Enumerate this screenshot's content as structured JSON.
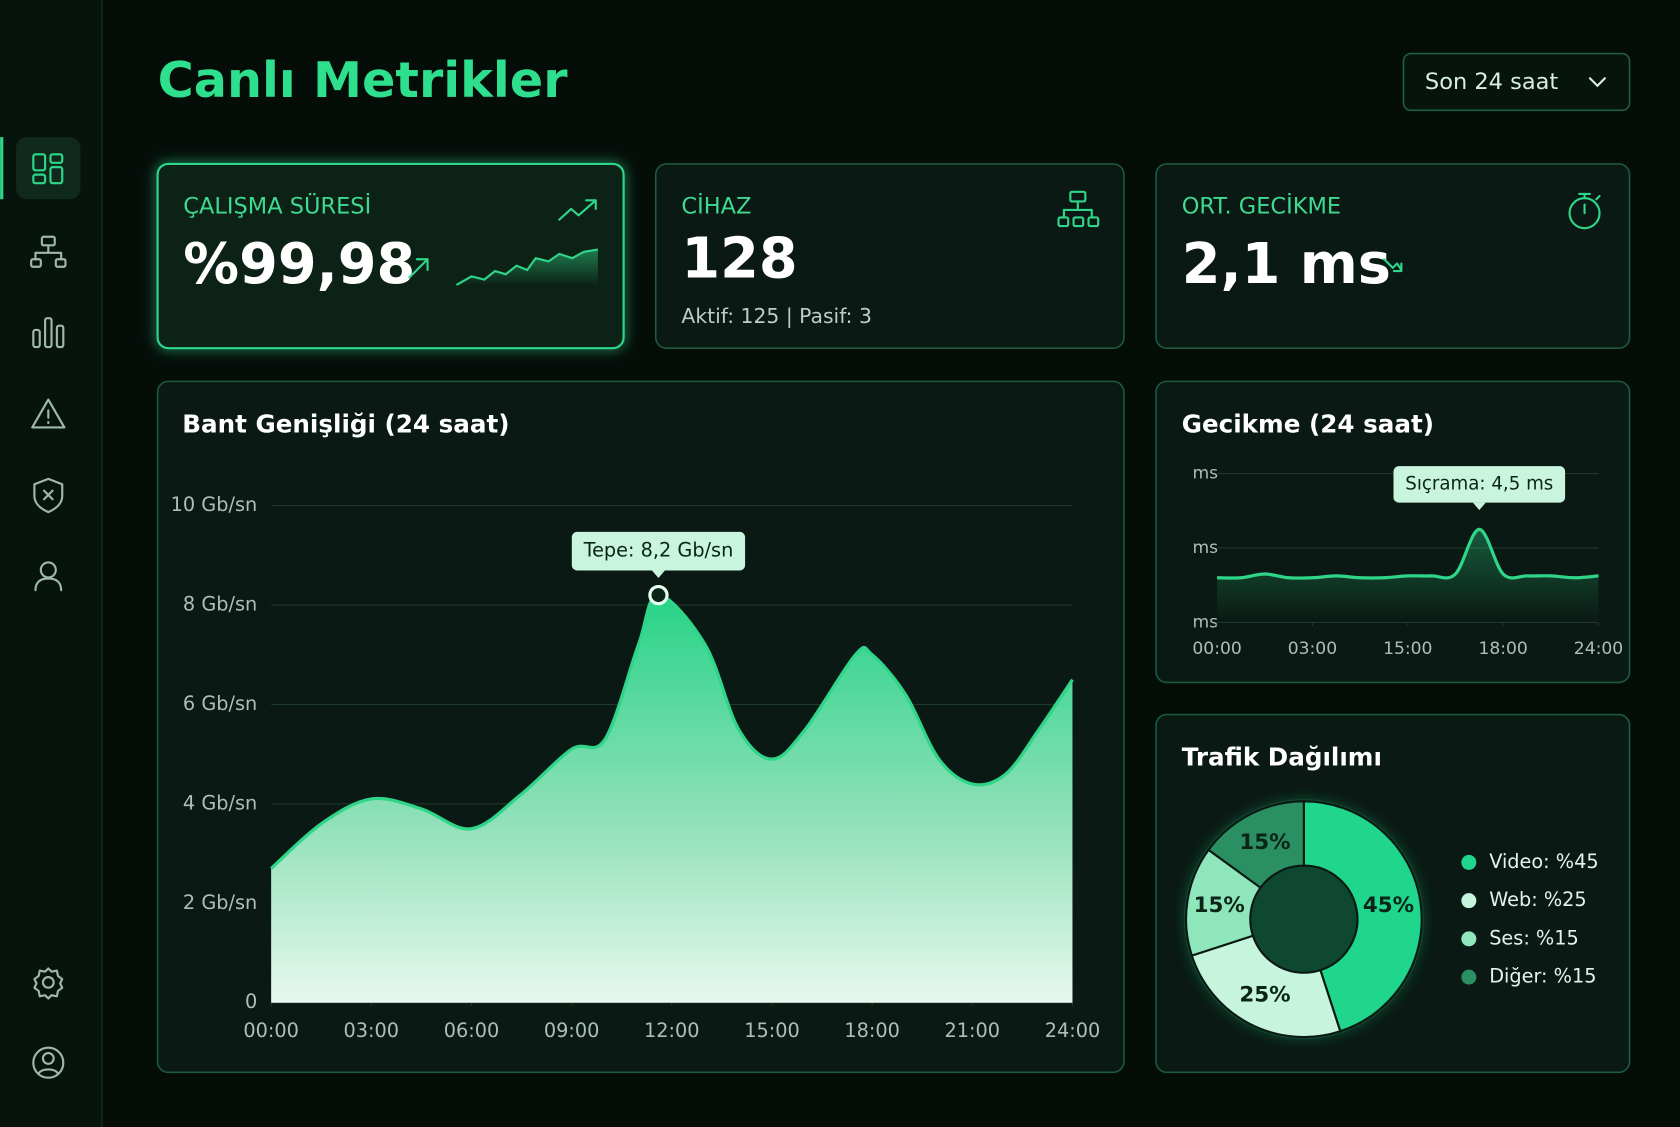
{
  "header": {
    "title": "Canlı Metrikler",
    "range_selector": "Son 24 saat"
  },
  "kpis": [
    {
      "label": "ÇALIŞMA SÜRESİ",
      "value": "%99,98"
    },
    {
      "label": "CİHAZ",
      "value": "128",
      "detail": "Aktif: 125 | Pasif: 3"
    },
    {
      "label": "ORT. GECİKME",
      "value": "2,1 ms"
    }
  ],
  "chart_data": [
    {
      "type": "area",
      "title": "Bant Genişliği (24 saat)",
      "annotation": "Tepe: 8,2 Gb/sn",
      "x": [
        0,
        1.5,
        3,
        4.5,
        6,
        7.5,
        9,
        10,
        11,
        11.6,
        13,
        14,
        15,
        16,
        17.5,
        18,
        19,
        20,
        21,
        22,
        23,
        24
      ],
      "values": [
        2.7,
        3.6,
        4.1,
        3.9,
        3.5,
        4.2,
        5.1,
        5.3,
        7.2,
        8.2,
        7.2,
        5.5,
        4.9,
        5.5,
        7.0,
        7.0,
        6.2,
        4.9,
        4.4,
        4.6,
        5.5,
        6.5
      ],
      "color": "#2fd68a",
      "xlim": [
        0,
        24
      ],
      "xticks": [
        {
          "value": 0,
          "label": "00:00"
        },
        {
          "value": 3,
          "label": "03:00"
        },
        {
          "value": 6,
          "label": "06:00"
        },
        {
          "value": 9,
          "label": "09:00"
        },
        {
          "value": 12,
          "label": "12:00"
        },
        {
          "value": 15,
          "label": "15:00"
        },
        {
          "value": 18,
          "label": "18:00"
        },
        {
          "value": 21,
          "label": "21:00"
        },
        {
          "value": 24,
          "label": "24:00"
        }
      ],
      "ylim": [
        0,
        10
      ],
      "yticks": [
        0,
        {
          "value": 2,
          "label": "2 Gb/sn"
        },
        {
          "value": 4,
          "label": "4 Gb/sn"
        },
        {
          "value": 6,
          "label": "6 Gb/sn"
        },
        {
          "value": 8,
          "label": "8 Gb/sn"
        },
        {
          "value": 10,
          "label": "10 Gb/sn"
        }
      ],
      "grid": true
    },
    {
      "type": "line",
      "title": "Gecikme (24 saat)",
      "annotation": "Sıçrama: 4,5 ms",
      "x": [
        0,
        0.25,
        0.5,
        0.75,
        1,
        1.25,
        1.5,
        1.75,
        2,
        2.25,
        2.5,
        2.75,
        3,
        3.25,
        3.5,
        3.75,
        4
      ],
      "values": [
        3.2,
        3.2,
        3.3,
        3.2,
        3.2,
        3.25,
        3.2,
        3.2,
        3.25,
        3.25,
        3.3,
        4.5,
        3.3,
        3.25,
        3.25,
        3.2,
        3.25
      ],
      "color": "#2fd68a",
      "xlim": [
        0,
        4
      ],
      "xticks": [
        {
          "value": 0,
          "label": "00:00"
        },
        {
          "value": 1,
          "label": "03:00"
        },
        {
          "value": 2,
          "label": "15:00"
        },
        {
          "value": 3,
          "label": "18:00"
        },
        {
          "value": 4,
          "label": "24:00"
        }
      ],
      "ylim": [
        2,
        6
      ],
      "yticks": [
        {
          "value": 6,
          "label": "ms"
        },
        {
          "value": 4,
          "label": "ms"
        },
        {
          "value": 2,
          "label": "ms"
        }
      ],
      "grid": true
    },
    {
      "type": "pie",
      "title": "Trafik Dağılımı",
      "labels": [
        "Video: %45",
        "Web: %25",
        "Ses: %15",
        "Diğer: %15"
      ],
      "values": [
        45,
        25,
        15,
        15
      ],
      "value_labels": [
        "45%",
        "25%",
        "15%",
        "15%"
      ],
      "colors": [
        "#1fd68c",
        "#c6f4dc",
        "#8fe6bb",
        "#2a8f62"
      ],
      "donut": true
    }
  ]
}
